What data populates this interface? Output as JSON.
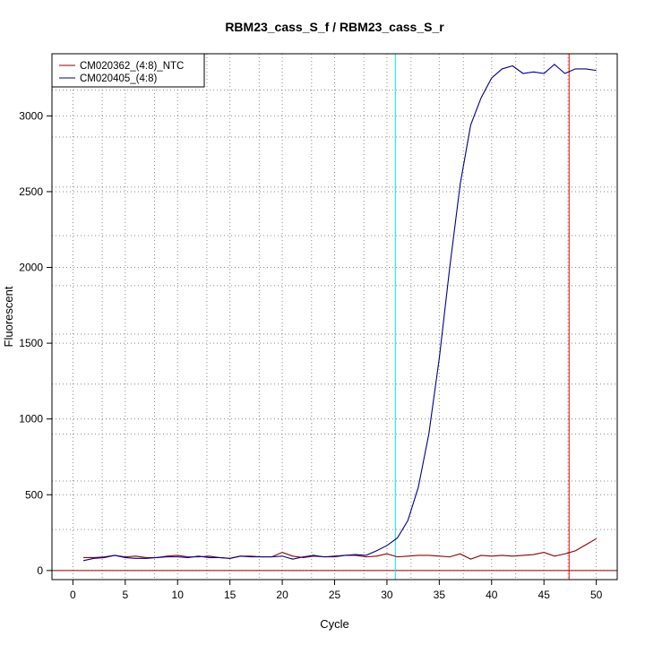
{
  "chart_data": {
    "type": "line",
    "title": "RBM23_cass_S_f / RBM23_cass_S_r",
    "xlabel": "Cycle",
    "ylabel": "Fluorescent",
    "xlim": [
      -2,
      52
    ],
    "ylim": [
      -60,
      3410
    ],
    "x_ticks": [
      0,
      5,
      10,
      15,
      20,
      25,
      30,
      35,
      40,
      45,
      50
    ],
    "y_ticks": [
      0,
      500,
      1000,
      1500,
      2000,
      2500,
      3000
    ],
    "grid": true,
    "legend_position": "top-left",
    "series": [
      {
        "name": "CM020362_(4:8)_NTC",
        "color": "#8b0000",
        "x": [
          1,
          2,
          3,
          4,
          5,
          6,
          7,
          8,
          9,
          10,
          11,
          12,
          13,
          14,
          15,
          16,
          17,
          18,
          19,
          20,
          21,
          22,
          23,
          24,
          25,
          26,
          27,
          28,
          29,
          30,
          31,
          32,
          33,
          34,
          35,
          36,
          37,
          38,
          39,
          40,
          41,
          42,
          43,
          44,
          45,
          46,
          47,
          48,
          49,
          50
        ],
        "values": [
          85,
          85,
          90,
          100,
          90,
          95,
          85,
          85,
          95,
          100,
          90,
          90,
          95,
          85,
          80,
          95,
          95,
          90,
          90,
          120,
          95,
          85,
          95,
          90,
          90,
          100,
          100,
          90,
          95,
          110,
          90,
          95,
          100,
          100,
          95,
          90,
          110,
          75,
          100,
          95,
          100,
          95,
          100,
          105,
          120,
          95,
          110,
          130,
          170,
          210
        ]
      },
      {
        "name": "CM020405_(4:8)",
        "color": "#00008b",
        "x": [
          1,
          2,
          3,
          4,
          5,
          6,
          7,
          8,
          9,
          10,
          11,
          12,
          13,
          14,
          15,
          16,
          17,
          18,
          19,
          20,
          21,
          22,
          23,
          24,
          25,
          26,
          27,
          28,
          29,
          30,
          31,
          32,
          33,
          34,
          35,
          36,
          37,
          38,
          39,
          40,
          41,
          42,
          43,
          44,
          45,
          46,
          47,
          48,
          49,
          50
        ],
        "values": [
          65,
          80,
          85,
          100,
          85,
          80,
          80,
          85,
          90,
          90,
          85,
          95,
          85,
          85,
          80,
          95,
          90,
          90,
          90,
          95,
          75,
          90,
          100,
          90,
          95,
          100,
          105,
          100,
          130,
          165,
          215,
          330,
          550,
          900,
          1400,
          2000,
          2550,
          2940,
          3120,
          3250,
          3310,
          3330,
          3280,
          3290,
          3280,
          3340,
          3280,
          3310,
          3310,
          3300
        ]
      }
    ],
    "vlines": [
      {
        "x": 30.8,
        "color": "#00e5ee"
      },
      {
        "x": 47.4,
        "color": "#ff0000"
      }
    ],
    "hline": {
      "y": 0,
      "color": "#8b0000"
    },
    "minor_vgrid": [
      2.8,
      7.8,
      12.8,
      17.8,
      22.8,
      27.8,
      32.3,
      37.3,
      42.3,
      47.3
    ],
    "minor_hgrid": [
      270,
      590,
      900,
      1230,
      1560,
      1880,
      2210,
      2530,
      2860,
      3170
    ]
  }
}
